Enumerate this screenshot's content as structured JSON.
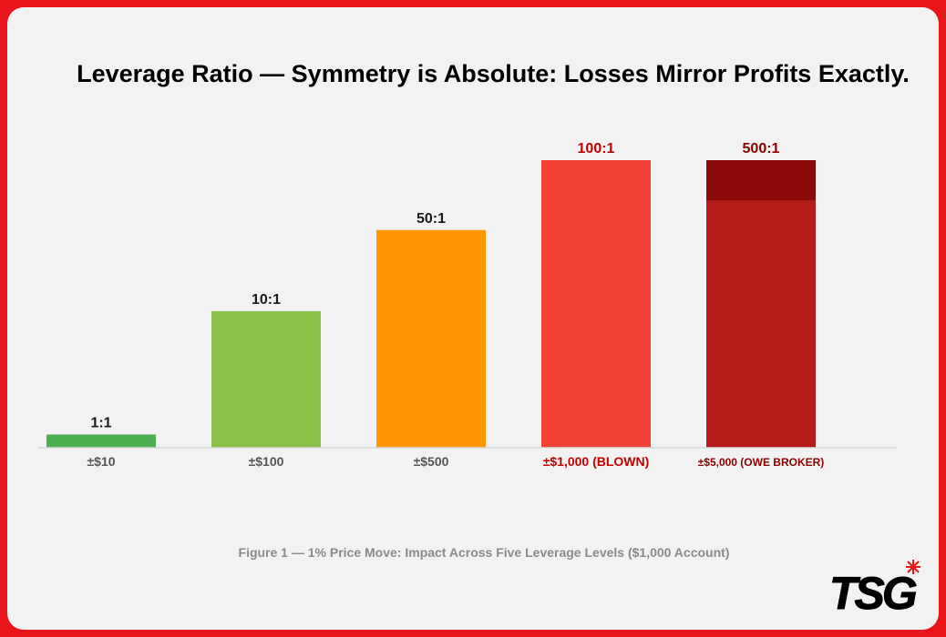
{
  "chart_data": {
    "type": "bar",
    "title": "Leverage Ratio — Symmetry is Absolute: Losses Mirror Profits Exactly.",
    "categories": [
      "±$10",
      "±$100",
      "±$500",
      "±$1,000 (BLOWN)",
      "±$5,000 (OWE BROKER)"
    ],
    "bar_labels": [
      "1:1",
      "10:1",
      "50:1",
      "100:1",
      "500:1"
    ],
    "values": [
      1,
      10,
      50,
      100,
      500
    ],
    "displayed_heights_relative": [
      0.046,
      0.475,
      0.757,
      1.0,
      1.0
    ],
    "capped_top_fraction_of_last_bar": 0.14,
    "colors": [
      "#4caf50",
      "#8bc34a",
      "#ff9800",
      "#f44336",
      "#b71c1c"
    ],
    "cap_color": "#8b0a0a",
    "label_colors": [
      "#1a1a1a",
      "#1a1a1a",
      "#1a1a1a",
      "#c30000",
      "#8b0000"
    ],
    "category_label_colors": [
      "#555555",
      "#555555",
      "#555555",
      "#c30000",
      "#8b0000"
    ],
    "caption": "Figure 1 — 1% Price Move: Impact Across Five Leverage Levels ($1,000 Account)",
    "grid": false,
    "legend": "none"
  },
  "logo": {
    "text": "TSG"
  }
}
